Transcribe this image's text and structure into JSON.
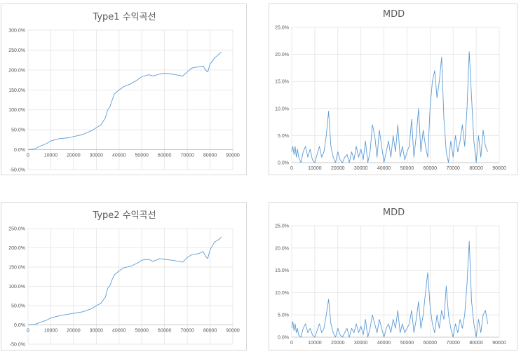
{
  "chart_data": [
    {
      "type": "line",
      "title": "Type1 수익곡선",
      "y_ticks": [
        "300.0%",
        "250.0%",
        "200.0%",
        "150.0%",
        "100.0%",
        "50.0%",
        "0.0%",
        "-50.0%"
      ],
      "x_ticks": [
        "0",
        "10000",
        "20000",
        "30000",
        "40000",
        "50000",
        "60000",
        "70000",
        "80000",
        "90000"
      ],
      "xlim": [
        0,
        90000
      ],
      "ylim": [
        -50,
        300
      ],
      "grid": true,
      "series": [
        {
          "color": "#5b9bd5",
          "x": [
            0,
            3000,
            5000,
            8000,
            10000,
            14000,
            18000,
            20000,
            24000,
            28000,
            30000,
            32000,
            34000,
            35000,
            36000,
            37000,
            38000,
            40000,
            42000,
            45000,
            48000,
            50000,
            53000,
            55000,
            58000,
            60000,
            63000,
            65000,
            68000,
            70000,
            72000,
            75000,
            77000,
            78000,
            79000,
            80000,
            82000,
            84000,
            85000
          ],
          "values": [
            0,
            2,
            8,
            15,
            22,
            28,
            30,
            33,
            38,
            48,
            55,
            62,
            80,
            100,
            108,
            125,
            140,
            150,
            158,
            165,
            175,
            183,
            188,
            185,
            190,
            192,
            190,
            188,
            185,
            195,
            205,
            208,
            210,
            200,
            195,
            215,
            230,
            240,
            245
          ]
        }
      ]
    },
    {
      "type": "line",
      "title": "MDD",
      "y_ticks": [
        "25.0%",
        "20.0%",
        "15.0%",
        "10.0%",
        "5.0%",
        "0.0%"
      ],
      "x_ticks": [
        "0",
        "10000",
        "20000",
        "30000",
        "40000",
        "50000",
        "60000",
        "70000",
        "80000",
        "90000"
      ],
      "xlim": [
        0,
        90000
      ],
      "ylim": [
        0,
        25
      ],
      "grid": true,
      "series": [
        {
          "color": "#5b9bd5",
          "x": [
            0,
            500,
            1000,
            1500,
            2000,
            2500,
            3000,
            4000,
            5000,
            6000,
            7000,
            8000,
            9000,
            10000,
            11000,
            12000,
            13000,
            14000,
            15000,
            16000,
            17000,
            18000,
            19000,
            20000,
            21000,
            22000,
            23000,
            24000,
            25000,
            26000,
            27000,
            28000,
            29000,
            30000,
            31000,
            32000,
            33000,
            34000,
            35000,
            36000,
            37000,
            38000,
            39000,
            40000,
            41000,
            42000,
            43000,
            44000,
            45000,
            46000,
            47000,
            48000,
            49000,
            50000,
            51000,
            52000,
            53000,
            54000,
            55000,
            56000,
            57000,
            58000,
            59000,
            60000,
            61000,
            62000,
            63000,
            64000,
            65000,
            66000,
            67000,
            68000,
            69000,
            70000,
            71000,
            72000,
            73000,
            74000,
            75000,
            76000,
            77000,
            78000,
            79000,
            80000,
            81000,
            82000,
            83000,
            84000,
            85000
          ],
          "values": [
            2,
            3,
            1.5,
            3,
            1,
            2.5,
            1,
            0,
            2,
            3,
            1,
            2.5,
            0.5,
            0,
            1.5,
            3,
            1,
            2,
            5,
            9.5,
            3,
            1,
            0,
            2,
            0.5,
            0,
            1,
            1.5,
            0,
            2,
            0.5,
            3,
            1,
            2.5,
            0.5,
            4,
            0,
            2,
            7,
            5,
            1,
            6,
            3,
            0,
            2,
            4,
            1,
            5,
            2,
            7,
            1,
            3,
            0.5,
            2,
            3,
            8,
            1,
            5,
            10,
            2,
            6,
            3,
            1,
            10,
            15,
            17,
            12,
            15,
            19.5,
            8,
            2,
            0,
            4,
            1,
            5,
            2,
            4,
            7,
            3,
            10,
            20.5,
            12,
            4,
            0,
            5,
            1,
            6,
            3,
            2
          ]
        }
      ]
    },
    {
      "type": "line",
      "title": "Type2 수익곡선",
      "y_ticks": [
        "250.0%",
        "200.0%",
        "150.0%",
        "100.0%",
        "50.0%",
        "0.0%",
        "-50.0%"
      ],
      "x_ticks": [
        "0",
        "10000",
        "20000",
        "30000",
        "40000",
        "50000",
        "60000",
        "70000",
        "80000",
        "90000"
      ],
      "xlim": [
        0,
        90000
      ],
      "ylim": [
        -50,
        250
      ],
      "grid": true,
      "series": [
        {
          "color": "#5b9bd5",
          "x": [
            0,
            3000,
            5000,
            8000,
            10000,
            14000,
            18000,
            20000,
            24000,
            28000,
            30000,
            32000,
            34000,
            35000,
            36000,
            37000,
            38000,
            40000,
            42000,
            45000,
            48000,
            50000,
            53000,
            55000,
            58000,
            60000,
            63000,
            65000,
            68000,
            70000,
            72000,
            75000,
            77000,
            78000,
            79000,
            80000,
            82000,
            84000,
            85000
          ],
          "values": [
            0,
            1,
            6,
            12,
            18,
            24,
            28,
            30,
            34,
            42,
            50,
            56,
            72,
            95,
            102,
            118,
            130,
            140,
            148,
            152,
            160,
            168,
            170,
            165,
            172,
            170,
            168,
            166,
            163,
            175,
            182,
            185,
            190,
            178,
            172,
            195,
            215,
            222,
            228
          ]
        }
      ]
    },
    {
      "type": "line",
      "title": "MDD",
      "y_ticks": [
        "25.0%",
        "20.0%",
        "15.0%",
        "10.0%",
        "5.0%",
        "0.0%"
      ],
      "x_ticks": [
        "0",
        "10000",
        "20000",
        "30000",
        "40000",
        "50000",
        "60000",
        "70000",
        "80000",
        "90000"
      ],
      "xlim": [
        0,
        90000
      ],
      "ylim": [
        0,
        25
      ],
      "grid": true,
      "series": [
        {
          "color": "#5b9bd5",
          "x": [
            0,
            500,
            1000,
            1500,
            2000,
            2500,
            3000,
            4000,
            5000,
            6000,
            7000,
            8000,
            9000,
            10000,
            11000,
            12000,
            13000,
            14000,
            15000,
            16000,
            17000,
            18000,
            19000,
            20000,
            21000,
            22000,
            23000,
            24000,
            25000,
            26000,
            27000,
            28000,
            29000,
            30000,
            31000,
            32000,
            33000,
            34000,
            35000,
            36000,
            37000,
            38000,
            39000,
            40000,
            41000,
            42000,
            43000,
            44000,
            45000,
            46000,
            47000,
            48000,
            49000,
            50000,
            51000,
            52000,
            53000,
            54000,
            55000,
            56000,
            57000,
            58000,
            59000,
            60000,
            61000,
            62000,
            63000,
            64000,
            65000,
            66000,
            67000,
            68000,
            69000,
            70000,
            71000,
            72000,
            73000,
            74000,
            75000,
            76000,
            77000,
            78000,
            79000,
            80000,
            81000,
            82000,
            83000,
            84000,
            85000
          ],
          "values": [
            2,
            3.5,
            1.5,
            3,
            1,
            2,
            0.5,
            0,
            2,
            3,
            1,
            2,
            0.5,
            0,
            1.5,
            3,
            1,
            2,
            5,
            8.5,
            3,
            1,
            0,
            2,
            0.5,
            0,
            1,
            2,
            0,
            2,
            1,
            3,
            1,
            2.5,
            0.5,
            4,
            0,
            2,
            5,
            3,
            1,
            4,
            2,
            0,
            2,
            3,
            1,
            4,
            2,
            6,
            1,
            3,
            1,
            2,
            3,
            6,
            1,
            4,
            8,
            2,
            5,
            10,
            14.5,
            7,
            3,
            1,
            5,
            2,
            6,
            4,
            11.5,
            5,
            2,
            0,
            3,
            1,
            4,
            2,
            5,
            12,
            21.5,
            8,
            3,
            0,
            4,
            1,
            5,
            6,
            3
          ]
        }
      ]
    }
  ]
}
